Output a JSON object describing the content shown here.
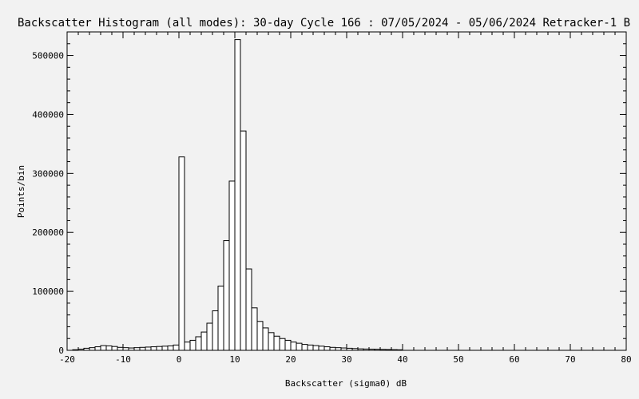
{
  "chart_data": {
    "type": "bar",
    "title": "Backscatter Histogram (all modes): 30-day Cycle 166 : 07/05/2024 - 05/06/2024 Retracker-1 B",
    "xlabel": "Backscatter (sigma0) dB",
    "ylabel": "Points/bin",
    "xlim": [
      -20,
      80
    ],
    "ylim": [
      0,
      540000
    ],
    "bin_width": 1,
    "x_ticks": [
      -20,
      -10,
      0,
      10,
      20,
      30,
      40,
      50,
      60,
      70,
      80
    ],
    "y_ticks": [
      0,
      100000,
      200000,
      300000,
      400000,
      500000
    ],
    "x_tick_labels": [
      "-20",
      "-10",
      "0",
      "10",
      "20",
      "30",
      "40",
      "50",
      "60",
      "70",
      "80"
    ],
    "y_tick_labels": [
      "0",
      "100000",
      "200000",
      "300000",
      "400000",
      "500000"
    ],
    "bins": [
      {
        "x": -20,
        "y": 0
      },
      {
        "x": -19,
        "y": 1000
      },
      {
        "x": -18,
        "y": 2000
      },
      {
        "x": -17,
        "y": 3500
      },
      {
        "x": -16,
        "y": 4500
      },
      {
        "x": -15,
        "y": 6000
      },
      {
        "x": -14,
        "y": 8000
      },
      {
        "x": -13,
        "y": 7500
      },
      {
        "x": -12,
        "y": 6500
      },
      {
        "x": -11,
        "y": 5000
      },
      {
        "x": -10,
        "y": 4500
      },
      {
        "x": -9,
        "y": 4000
      },
      {
        "x": -8,
        "y": 4500
      },
      {
        "x": -7,
        "y": 5000
      },
      {
        "x": -6,
        "y": 5500
      },
      {
        "x": -5,
        "y": 6000
      },
      {
        "x": -4,
        "y": 6500
      },
      {
        "x": -3,
        "y": 7000
      },
      {
        "x": -2,
        "y": 7500
      },
      {
        "x": -1,
        "y": 9000
      },
      {
        "x": 0,
        "y": 328000
      },
      {
        "x": 1,
        "y": 14000
      },
      {
        "x": 2,
        "y": 17000
      },
      {
        "x": 3,
        "y": 23000
      },
      {
        "x": 4,
        "y": 31000
      },
      {
        "x": 5,
        "y": 46000
      },
      {
        "x": 6,
        "y": 67000
      },
      {
        "x": 7,
        "y": 109000
      },
      {
        "x": 8,
        "y": 186000
      },
      {
        "x": 9,
        "y": 287000
      },
      {
        "x": 10,
        "y": 527000
      },
      {
        "x": 11,
        "y": 372000
      },
      {
        "x": 12,
        "y": 138000
      },
      {
        "x": 13,
        "y": 72000
      },
      {
        "x": 14,
        "y": 49000
      },
      {
        "x": 15,
        "y": 38000
      },
      {
        "x": 16,
        "y": 30000
      },
      {
        "x": 17,
        "y": 24000
      },
      {
        "x": 18,
        "y": 20000
      },
      {
        "x": 19,
        "y": 17000
      },
      {
        "x": 20,
        "y": 14000
      },
      {
        "x": 21,
        "y": 12000
      },
      {
        "x": 22,
        "y": 10000
      },
      {
        "x": 23,
        "y": 9000
      },
      {
        "x": 24,
        "y": 8000
      },
      {
        "x": 25,
        "y": 7000
      },
      {
        "x": 26,
        "y": 6000
      },
      {
        "x": 27,
        "y": 5000
      },
      {
        "x": 28,
        "y": 4500
      },
      {
        "x": 29,
        "y": 4000
      },
      {
        "x": 30,
        "y": 3500
      },
      {
        "x": 31,
        "y": 3000
      },
      {
        "x": 32,
        "y": 2500
      },
      {
        "x": 33,
        "y": 2200
      },
      {
        "x": 34,
        "y": 2000
      },
      {
        "x": 35,
        "y": 1800
      },
      {
        "x": 36,
        "y": 1500
      },
      {
        "x": 37,
        "y": 1300
      },
      {
        "x": 38,
        "y": 1100
      },
      {
        "x": 39,
        "y": 900
      },
      {
        "x": 40,
        "y": 0
      },
      {
        "x": 41,
        "y": 0
      },
      {
        "x": 42,
        "y": 0
      },
      {
        "x": 43,
        "y": 0
      },
      {
        "x": 44,
        "y": 0
      },
      {
        "x": 45,
        "y": 0
      },
      {
        "x": 46,
        "y": 0
      },
      {
        "x": 47,
        "y": 0
      },
      {
        "x": 48,
        "y": 0
      },
      {
        "x": 49,
        "y": 0
      },
      {
        "x": 50,
        "y": 0
      },
      {
        "x": 51,
        "y": 0
      },
      {
        "x": 52,
        "y": 0
      },
      {
        "x": 53,
        "y": 0
      },
      {
        "x": 54,
        "y": 0
      },
      {
        "x": 55,
        "y": 0
      },
      {
        "x": 56,
        "y": 0
      },
      {
        "x": 57,
        "y": 0
      },
      {
        "x": 58,
        "y": 0
      },
      {
        "x": 59,
        "y": 0
      },
      {
        "x": 60,
        "y": 0
      },
      {
        "x": 61,
        "y": 0
      },
      {
        "x": 62,
        "y": 0
      },
      {
        "x": 63,
        "y": 0
      },
      {
        "x": 64,
        "y": 0
      },
      {
        "x": 65,
        "y": 0
      },
      {
        "x": 66,
        "y": 0
      },
      {
        "x": 67,
        "y": 0
      },
      {
        "x": 68,
        "y": 0
      },
      {
        "x": 69,
        "y": 0
      },
      {
        "x": 70,
        "y": 0
      },
      {
        "x": 71,
        "y": 0
      },
      {
        "x": 72,
        "y": 0
      },
      {
        "x": 73,
        "y": 0
      },
      {
        "x": 74,
        "y": 0
      },
      {
        "x": 75,
        "y": 0
      },
      {
        "x": 76,
        "y": 0
      },
      {
        "x": 77,
        "y": 0
      },
      {
        "x": 78,
        "y": 0
      },
      {
        "x": 79,
        "y": 0
      }
    ],
    "grid": false,
    "legend": "none",
    "colors": {
      "background": "#f2f2f2",
      "bar_fill": "#ffffff",
      "bar_stroke": "#000000",
      "axis": "#000000"
    }
  }
}
